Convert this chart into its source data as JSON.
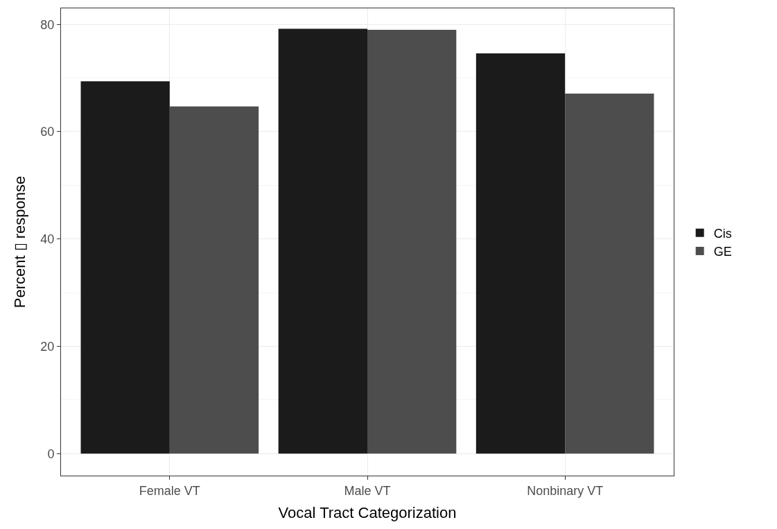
{
  "chart_data": {
    "type": "bar",
    "xlabel": "Vocal Tract Categorization",
    "ylabel": "Percent ▯ response",
    "categories": [
      "Female VT",
      "Male VT",
      "Nonbinary VT"
    ],
    "series": [
      {
        "name": "Cis",
        "color": "#1b1b1b",
        "values": [
          69.4,
          79.2,
          74.6
        ]
      },
      {
        "name": "GE",
        "color": "#4d4d4d",
        "values": [
          64.7,
          79.0,
          67.1
        ]
      }
    ],
    "ylim": [
      -4.1,
      83.0
    ],
    "yticks": [
      0,
      20,
      40,
      60,
      80
    ],
    "grid": true,
    "legend": "right"
  }
}
